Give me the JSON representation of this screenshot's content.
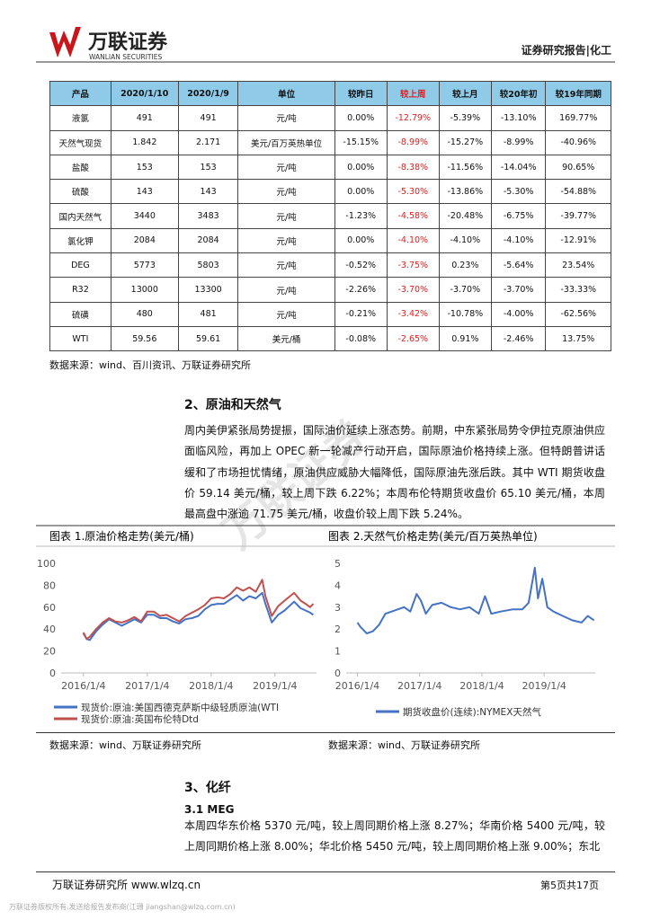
{
  "header": {
    "brand": "万联证券",
    "brand_en": "WANLIAN SECURITIES",
    "report_type": "证券研究报告|化工"
  },
  "watermark": "万联证券",
  "table": {
    "columns": [
      "产品",
      "2020/1/10",
      "2020/1/9",
      "单位",
      "较昨日",
      "较上周",
      "较上月",
      "较20年初",
      "较19年同期"
    ],
    "highlight_column": 5,
    "rows": [
      [
        "液氯",
        "491",
        "491",
        "元/吨",
        "0.00%",
        "-12.79%",
        "-5.39%",
        "-13.10%",
        "169.77%"
      ],
      [
        "天然气现货",
        "1.842",
        "2.171",
        "美元/百万英热单位",
        "-15.15%",
        "-8.99%",
        "-15.27%",
        "-8.99%",
        "-40.96%"
      ],
      [
        "盐酸",
        "153",
        "153",
        "元/吨",
        "0.00%",
        "-8.38%",
        "-11.56%",
        "-14.04%",
        "90.65%"
      ],
      [
        "硫酸",
        "143",
        "143",
        "元/吨",
        "0.00%",
        "-5.30%",
        "-13.86%",
        "-5.30%",
        "-54.88%"
      ],
      [
        "国内天然气",
        "3440",
        "3483",
        "元/吨",
        "-1.23%",
        "-4.58%",
        "-20.48%",
        "-6.75%",
        "-39.77%"
      ],
      [
        "氯化钾",
        "2084",
        "2084",
        "元/吨",
        "0.00%",
        "-4.10%",
        "-4.10%",
        "-4.10%",
        "-12.91%"
      ],
      [
        "DEG",
        "5773",
        "5803",
        "元/吨",
        "-0.52%",
        "-3.75%",
        "0.23%",
        "-5.64%",
        "23.54%"
      ],
      [
        "R32",
        "13000",
        "13300",
        "元/吨",
        "-2.26%",
        "-3.70%",
        "-3.70%",
        "-3.70%",
        "-33.33%"
      ],
      [
        "硫磺",
        "480",
        "481",
        "元/吨",
        "-0.21%",
        "-3.42%",
        "-10.78%",
        "-4.00%",
        "-62.56%"
      ],
      [
        "WTI",
        "59.56",
        "59.61",
        "美元/桶",
        "-0.08%",
        "-2.65%",
        "0.91%",
        "-2.46%",
        "13.75%"
      ]
    ]
  },
  "table_source": "数据来源：wind、百川资讯、万联证券研究所",
  "section2": {
    "title": "2、原油和天然气",
    "paragraph": "周内美伊紧张局势提振，国际油价延续上涨态势。前期，中东紧张局势令伊拉克原油供应面临风险，再加上 OPEC 新一轮减产行动开启，国际原油价格持续上涨。但特朗普讲话缓和了市场担忧情绪，原油供应威胁大幅降低，国际原油先涨后跌。其中 WTI 期货收盘价 59.14 美元/桶，较上周下跌 6.22%；本周布伦特期货收盘价 65.10 美元/桶，本周最高盘中涨逾 71.75 美元/桶，收盘价较上周下跌 5.24%。"
  },
  "chart_data": [
    {
      "type": "line",
      "title": "图表 1.原油价格走势(美元/桶)",
      "source": "数据来源：wind、万联证券研究所",
      "legend": "bottom",
      "x": [
        2016.0,
        2016.05,
        2016.1,
        2016.2,
        2016.3,
        2016.4,
        2016.5,
        2016.6,
        2016.7,
        2016.8,
        2016.9,
        2017.0,
        2017.1,
        2017.2,
        2017.3,
        2017.4,
        2017.5,
        2017.6,
        2017.7,
        2017.8,
        2017.9,
        2018.0,
        2018.1,
        2018.2,
        2018.3,
        2018.4,
        2018.5,
        2018.6,
        2018.7,
        2018.8,
        2018.85,
        2018.95,
        2019.05,
        2019.15,
        2019.3,
        2019.4,
        2019.48,
        2019.55,
        2019.6
      ],
      "series": [
        {
          "name": "现货价:原油:美国西德克萨斯中级轻质原油(WTI",
          "color": "#4472c4",
          "values": [
            36,
            31,
            30,
            38,
            44,
            49,
            46,
            43,
            46,
            49,
            46,
            53,
            53,
            50,
            50,
            47,
            45,
            49,
            50,
            52,
            58,
            62,
            63,
            63,
            67,
            71,
            66,
            70,
            68,
            73,
            63,
            46,
            53,
            57,
            65,
            59,
            57,
            55,
            53
          ]
        },
        {
          "name": "现货价:原油:英国布伦特Dtd",
          "color": "#c0504d",
          "values": [
            37,
            31,
            33,
            40,
            46,
            50,
            47,
            46,
            48,
            51,
            47,
            56,
            56,
            52,
            53,
            50,
            47,
            52,
            55,
            58,
            62,
            68,
            69,
            68,
            72,
            78,
            75,
            78,
            74,
            85,
            70,
            52,
            61,
            66,
            73,
            66,
            63,
            60,
            63
          ]
        }
      ],
      "xlim": [
        2015.65,
        2019.65
      ],
      "xticks": [
        {
          "value": 2016.0,
          "label": "2016/1/4"
        },
        {
          "value": 2017.0,
          "label": "2017/1/4"
        },
        {
          "value": 2018.0,
          "label": "2018/1/4"
        },
        {
          "value": 2019.0,
          "label": "2019/1/4"
        }
      ],
      "ylim": [
        0,
        100
      ],
      "yticks": [
        0,
        20,
        40,
        60,
        80,
        100
      ],
      "grid": false
    },
    {
      "type": "line",
      "title": "图表 2.天然气价格走势(美元/百万英热单位)",
      "source": "数据来源：wind、万联证券研究所",
      "legend": "bottom",
      "x": [
        2016.0,
        2016.05,
        2016.15,
        2016.25,
        2016.35,
        2016.45,
        2016.55,
        2016.65,
        2016.75,
        2016.85,
        2016.95,
        2017.02,
        2017.1,
        2017.2,
        2017.35,
        2017.5,
        2017.65,
        2017.8,
        2017.95,
        2018.05,
        2018.15,
        2018.3,
        2018.5,
        2018.65,
        2018.75,
        2018.85,
        2018.9,
        2018.97,
        2019.05,
        2019.15,
        2019.3,
        2019.45,
        2019.6,
        2019.7,
        2019.8
      ],
      "series": [
        {
          "name": "期货收盘价(连续):NYMEX天然气",
          "color": "#4472c4",
          "values": [
            2.3,
            2.1,
            1.8,
            1.9,
            2.2,
            2.7,
            2.8,
            2.9,
            3.0,
            2.8,
            3.6,
            3.3,
            2.7,
            3.1,
            3.2,
            3.0,
            2.9,
            3.0,
            2.7,
            3.5,
            2.7,
            2.8,
            2.9,
            2.9,
            3.2,
            4.8,
            3.4,
            4.3,
            3.0,
            2.8,
            2.6,
            2.4,
            2.3,
            2.6,
            2.4
          ]
        }
      ],
      "xlim": [
        2015.82,
        2019.82
      ],
      "xticks": [
        {
          "value": 2016.0,
          "label": "2016/1/4"
        },
        {
          "value": 2017.0,
          "label": "2017/1/4"
        },
        {
          "value": 2018.0,
          "label": "2018/1/4"
        },
        {
          "value": 2019.0,
          "label": "2019/1/4"
        }
      ],
      "ylim": [
        0,
        5
      ],
      "yticks": [
        0,
        1,
        2,
        3,
        4,
        5
      ],
      "grid": false
    }
  ],
  "section3": {
    "title": "3、化纤",
    "subtitle": "3.1 MEG",
    "paragraph": "本周四华东价格 5370 元/吨，较上周同期价格上涨 8.27%；华南价格 5400 元/吨，较上周同期价格上涨 8.00%；华北价格 5450 元/吨，较上周同期价格上涨 9.00%；东北"
  },
  "footer": {
    "left": "万联证券研究所 www.wlzq.cn",
    "page": "第5页共17页",
    "notice": "万联证券版权所有,发送给报告发布商(江珊 jiangshan@wlzq.com.cn)"
  }
}
